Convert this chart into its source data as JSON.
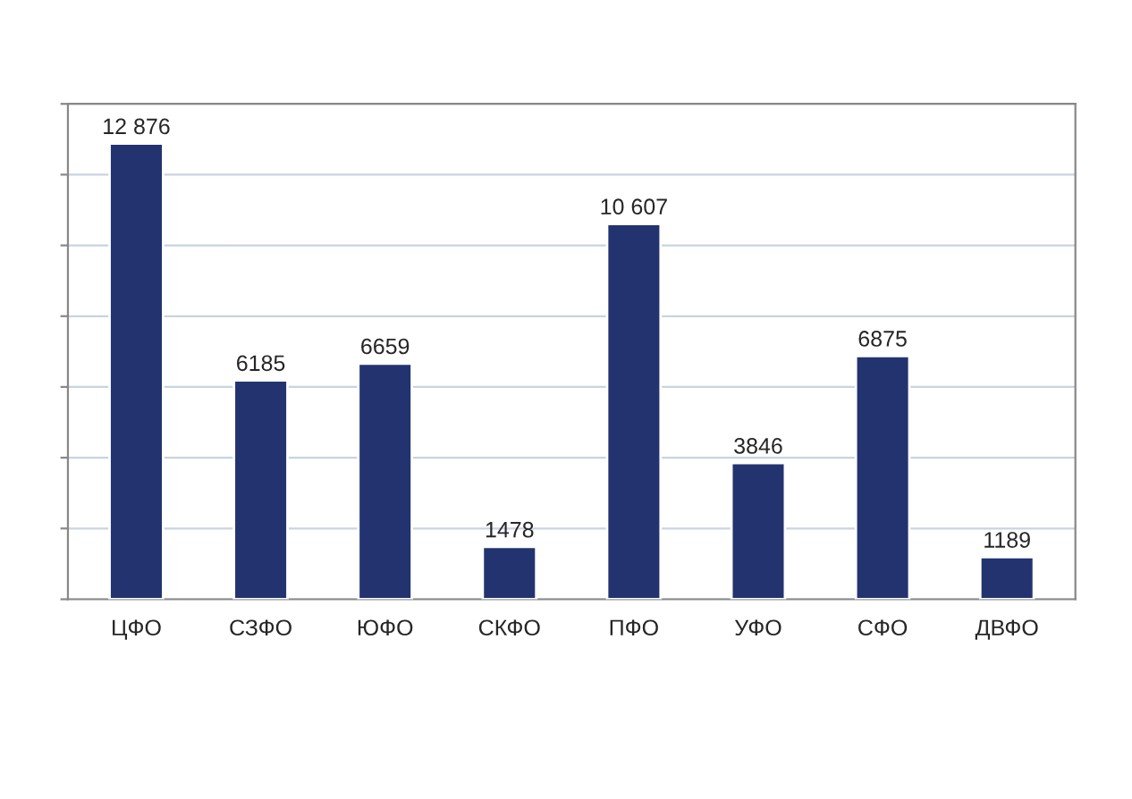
{
  "chart_data": {
    "type": "bar",
    "categories": [
      "ЦФО",
      "СЗФО",
      "ЮФО",
      "СКФО",
      "ПФО",
      "УФО",
      "СФО",
      "ДВФО"
    ],
    "values": [
      12876,
      6185,
      6659,
      1478,
      10607,
      3846,
      6875,
      1189
    ],
    "value_labels": [
      "12 876",
      "6185",
      "6659",
      "1478",
      "10 607",
      "3846",
      "6875",
      "1189"
    ],
    "color": "#22336f",
    "ylim": [
      0,
      14000
    ],
    "yticks": [
      {
        "value": 0,
        "label": null
      },
      {
        "value": 2000,
        "label": null
      },
      {
        "value": 4000,
        "label": null
      },
      {
        "value": 6000,
        "label": null
      },
      {
        "value": 8000,
        "label": null
      },
      {
        "value": 10000,
        "label": null
      },
      {
        "value": 12000,
        "label": null
      },
      {
        "value": 14000,
        "label": null
      }
    ],
    "grid": "y",
    "tick_labels": "x"
  }
}
